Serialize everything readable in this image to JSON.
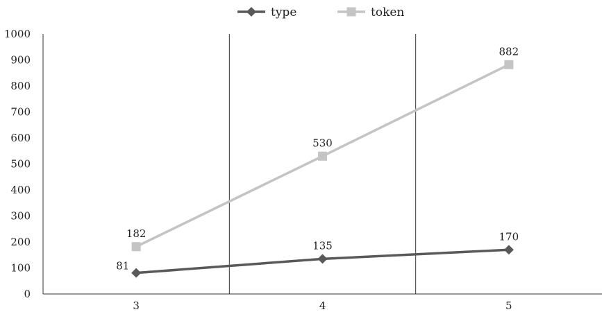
{
  "chart_data": {
    "type": "line",
    "categories": [
      "3",
      "4",
      "5"
    ],
    "series": [
      {
        "name": "type",
        "values": [
          81,
          135,
          170
        ],
        "color": "#595959",
        "marker": "diamond"
      },
      {
        "name": "token",
        "values": [
          182,
          530,
          882
        ],
        "color": "#c4c4c4",
        "marker": "square"
      }
    ],
    "ylim": [
      0,
      1000
    ],
    "yticks": [
      "0",
      "100",
      "200",
      "300",
      "400",
      "500",
      "600",
      "700",
      "800",
      "900",
      "1000"
    ],
    "legend_position": "top",
    "vertical_gridlines": true,
    "horizontal_gridlines": false
  }
}
